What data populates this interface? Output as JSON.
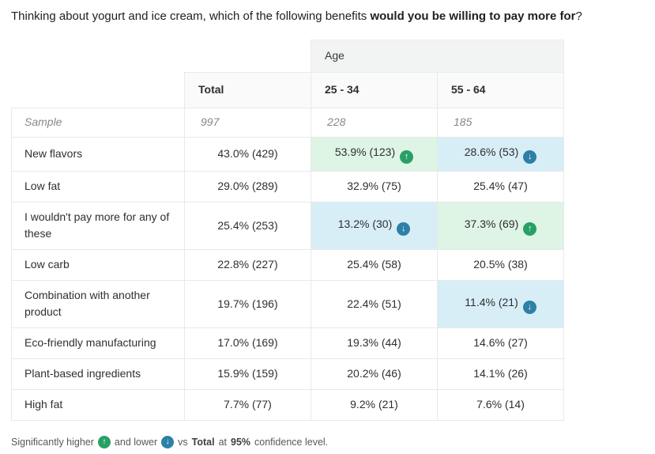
{
  "title": {
    "prefix": "Thinking about yogurt and ice cream, which of the following benefits ",
    "bold": "would you be willing to pay more for",
    "suffix": "?"
  },
  "icons": {
    "up_arrow": "↑",
    "down_arrow": "↓"
  },
  "colors": {
    "sig_higher_cell_bg": "#def4e4",
    "sig_lower_cell_bg": "#d8eef7",
    "sig_higher_badge": "#28a065",
    "sig_lower_badge": "#2d80a7",
    "group_header_bg": "#f2f3f3",
    "column_header_bg": "#fafafa",
    "border": "#e7e9ea"
  },
  "chart_data": {
    "type": "table",
    "title": "Thinking about yogurt and ice cream, which of the following benefits would you be willing to pay more for?",
    "group_header": "Age",
    "columns": [
      "Total",
      "25 - 34",
      "55 - 64"
    ],
    "sample_label": "Sample",
    "sample_values": [
      "997",
      "228",
      "185"
    ],
    "rows": [
      {
        "label": "New flavors",
        "cells": [
          {
            "display": "43.0% (429)",
            "pct": 43.0,
            "n": 429,
            "sig": null
          },
          {
            "display": "53.9% (123)",
            "pct": 53.9,
            "n": 123,
            "sig": "higher"
          },
          {
            "display": "28.6% (53)",
            "pct": 28.6,
            "n": 53,
            "sig": "lower"
          }
        ]
      },
      {
        "label": "Low fat",
        "cells": [
          {
            "display": "29.0% (289)",
            "pct": 29.0,
            "n": 289,
            "sig": null
          },
          {
            "display": "32.9% (75)",
            "pct": 32.9,
            "n": 75,
            "sig": null
          },
          {
            "display": "25.4% (47)",
            "pct": 25.4,
            "n": 47,
            "sig": null
          }
        ]
      },
      {
        "label": "I wouldn't pay more for any of these",
        "cells": [
          {
            "display": "25.4% (253)",
            "pct": 25.4,
            "n": 253,
            "sig": null
          },
          {
            "display": "13.2% (30)",
            "pct": 13.2,
            "n": 30,
            "sig": "lower"
          },
          {
            "display": "37.3% (69)",
            "pct": 37.3,
            "n": 69,
            "sig": "higher"
          }
        ]
      },
      {
        "label": "Low carb",
        "cells": [
          {
            "display": "22.8% (227)",
            "pct": 22.8,
            "n": 227,
            "sig": null
          },
          {
            "display": "25.4% (58)",
            "pct": 25.4,
            "n": 58,
            "sig": null
          },
          {
            "display": "20.5% (38)",
            "pct": 20.5,
            "n": 38,
            "sig": null
          }
        ]
      },
      {
        "label": "Combination with another product",
        "cells": [
          {
            "display": "19.7% (196)",
            "pct": 19.7,
            "n": 196,
            "sig": null
          },
          {
            "display": "22.4% (51)",
            "pct": 22.4,
            "n": 51,
            "sig": null
          },
          {
            "display": "11.4% (21)",
            "pct": 11.4,
            "n": 21,
            "sig": "lower"
          }
        ]
      },
      {
        "label": "Eco-friendly manufacturing",
        "cells": [
          {
            "display": "17.0% (169)",
            "pct": 17.0,
            "n": 169,
            "sig": null
          },
          {
            "display": "19.3% (44)",
            "pct": 19.3,
            "n": 44,
            "sig": null
          },
          {
            "display": "14.6% (27)",
            "pct": 14.6,
            "n": 27,
            "sig": null
          }
        ]
      },
      {
        "label": "Plant-based ingredients",
        "cells": [
          {
            "display": "15.9% (159)",
            "pct": 15.9,
            "n": 159,
            "sig": null
          },
          {
            "display": "20.2% (46)",
            "pct": 20.2,
            "n": 46,
            "sig": null
          },
          {
            "display": "14.1% (26)",
            "pct": 14.1,
            "n": 26,
            "sig": null
          }
        ]
      },
      {
        "label": "High fat",
        "cells": [
          {
            "display": "7.7% (77)",
            "pct": 7.7,
            "n": 77,
            "sig": null
          },
          {
            "display": "9.2% (21)",
            "pct": 9.2,
            "n": 21,
            "sig": null
          },
          {
            "display": "7.6% (14)",
            "pct": 7.6,
            "n": 14,
            "sig": null
          }
        ]
      }
    ],
    "footnote": {
      "part1": "Significantly higher",
      "part2": "and lower",
      "part3": "vs",
      "bold1": "Total",
      "part4": "at",
      "bold2": "95%",
      "part5": "confidence level."
    }
  }
}
